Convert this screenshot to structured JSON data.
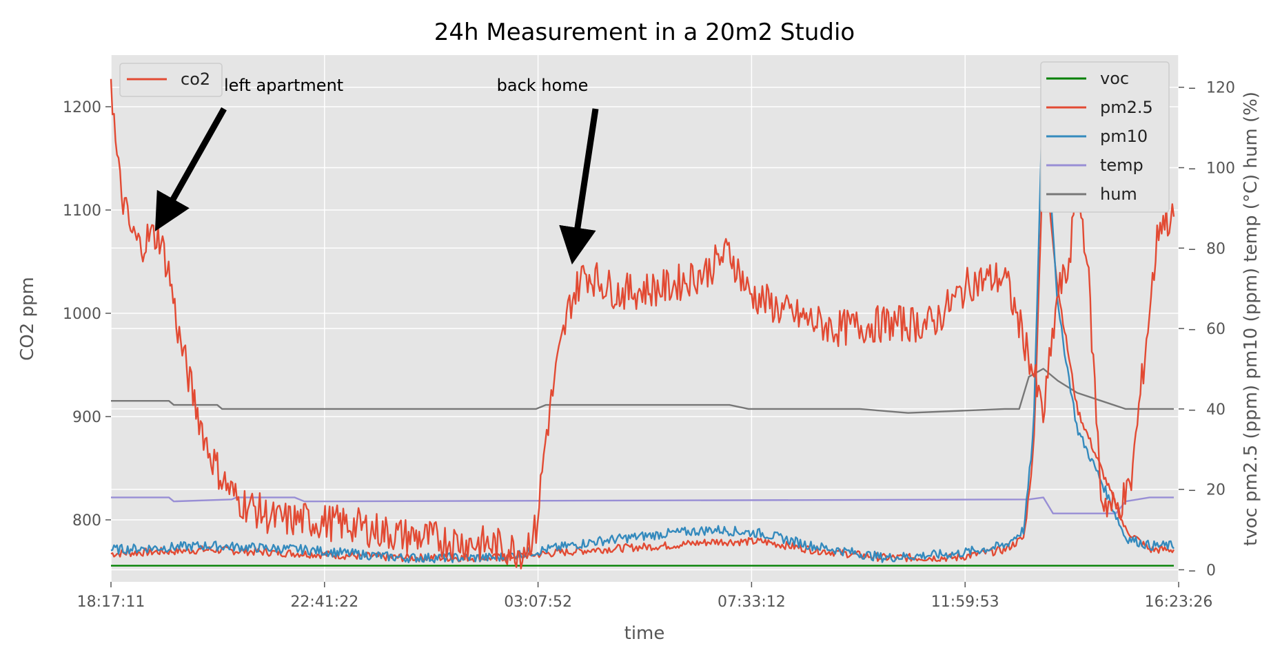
{
  "chart_data": {
    "type": "line",
    "title": "24h Measurement in a 20m2 Studio",
    "xlabel": "time",
    "ylabel": "CO2 ppm",
    "ylabel_right": "tvoc  pm2.5 (ppm)  pm10 (ppm)  temp (°C)  hum (%)",
    "x_ticks": [
      "18:17:11",
      "22:41:22",
      "03:07:52",
      "07:33:12",
      "11:59:53",
      "16:23:26"
    ],
    "x_range_hours": [
      0,
      22.1
    ],
    "left_axis": {
      "ylim": [
        740,
        1250
      ],
      "ticks": [
        800,
        900,
        1000,
        1100,
        1200
      ]
    },
    "right_axis": {
      "ylim": [
        -3,
        128
      ],
      "ticks": [
        0,
        20,
        40,
        60,
        80,
        100,
        120
      ]
    },
    "grid": true,
    "background": "#e5e5e5",
    "legend_left": {
      "placement": "top-left",
      "entries": [
        "co2"
      ]
    },
    "legend_right": {
      "placement": "top-right",
      "entries": [
        "voc",
        "pm2.5",
        "pm10",
        "temp",
        "hum"
      ]
    },
    "annotations": [
      {
        "text": "left apartment",
        "x_hours": 1.1,
        "y": 1095
      },
      {
        "text": "back home",
        "x_hours": 9.6,
        "y": 1065
      }
    ],
    "series": [
      {
        "name": "co2",
        "axis": "left",
        "color": "#e24a33",
        "noise": 18,
        "x": [
          0,
          0.1,
          0.2,
          0.4,
          0.6,
          0.8,
          1.0,
          1.2,
          1.4,
          1.7,
          2.0,
          2.3,
          2.6,
          3.0,
          3.4,
          4.0,
          5.0,
          6.0,
          7.0,
          8.0,
          8.5,
          8.8,
          9.0,
          9.2,
          9.5,
          9.8,
          10.5,
          11.5,
          12.3,
          12.8,
          13.2,
          14.0,
          15.0,
          16.0,
          17.0,
          17.8,
          18.5,
          19.0,
          19.3,
          19.6,
          19.8,
          20.0,
          20.2,
          20.5,
          20.8,
          21.1,
          21.4,
          21.7,
          22.0
        ],
        "y": [
          1230,
          1160,
          1120,
          1080,
          1065,
          1075,
          1075,
          1040,
          980,
          920,
          870,
          840,
          820,
          810,
          800,
          800,
          795,
          785,
          780,
          775,
          770,
          790,
          880,
          940,
          1010,
          1040,
          1020,
          1025,
          1040,
          1060,
          1020,
          1000,
          985,
          990,
          990,
          1030,
          1035,
          960,
          900,
          1020,
          1040,
          1120,
          1060,
          820,
          810,
          830,
          960,
          1090,
          1090
        ]
      },
      {
        "name": "voc",
        "axis": "right",
        "color": "#008000",
        "noise": 0,
        "x": [
          0,
          22.0
        ],
        "y": [
          1,
          1
        ]
      },
      {
        "name": "pm2.5",
        "axis": "right",
        "color": "#e24a33",
        "noise": 1,
        "x": [
          0,
          2,
          4,
          6,
          8,
          9,
          10,
          11.5,
          12.5,
          13.5,
          14.5,
          16,
          17.5,
          18.5,
          18.9,
          19.1,
          19.3,
          19.6,
          20.0,
          20.5,
          21.0,
          21.5,
          22.0
        ],
        "y": [
          4,
          5,
          4,
          3,
          3,
          4,
          5,
          6,
          7,
          7,
          5,
          3,
          3,
          5,
          8,
          30,
          105,
          70,
          40,
          25,
          10,
          5,
          5
        ]
      },
      {
        "name": "pm10",
        "axis": "right",
        "color": "#348abd",
        "noise": 1.2,
        "x": [
          0,
          2,
          4,
          6,
          8,
          9,
          10,
          11.5,
          12.5,
          13.5,
          14.5,
          16,
          17.5,
          18.5,
          18.9,
          19.1,
          19.3,
          19.6,
          20.0,
          20.5,
          21.0,
          21.5,
          22.0
        ],
        "y": [
          5,
          6,
          5,
          3,
          3,
          5,
          7,
          9,
          10,
          9,
          6,
          3,
          4,
          6,
          10,
          35,
          124,
          65,
          35,
          22,
          8,
          6,
          6
        ]
      },
      {
        "name": "temp",
        "axis": "right",
        "color": "#988ed5",
        "noise": 0,
        "x": [
          0,
          1.2,
          1.3,
          2.5,
          2.6,
          3.8,
          4.0,
          19.0,
          19.3,
          19.5,
          20.8,
          21.0,
          21.5,
          22.0
        ],
        "y": [
          18,
          18,
          17,
          17.5,
          18,
          18,
          17,
          17.5,
          18,
          14,
          14,
          17,
          18,
          18
        ]
      },
      {
        "name": "hum",
        "axis": "right",
        "color": "#777777",
        "noise": 0,
        "x": [
          0,
          1.2,
          1.3,
          2.2,
          2.3,
          8.8,
          9.0,
          12.8,
          13.2,
          15.5,
          16.5,
          18.5,
          18.8,
          19.0,
          19.3,
          19.6,
          20.0,
          20.5,
          21.0,
          22.0
        ],
        "y": [
          42,
          42,
          41,
          41,
          40,
          40,
          41,
          41,
          40,
          40,
          39,
          40,
          40,
          48,
          50,
          47,
          44,
          42,
          40,
          40
        ]
      }
    ]
  }
}
